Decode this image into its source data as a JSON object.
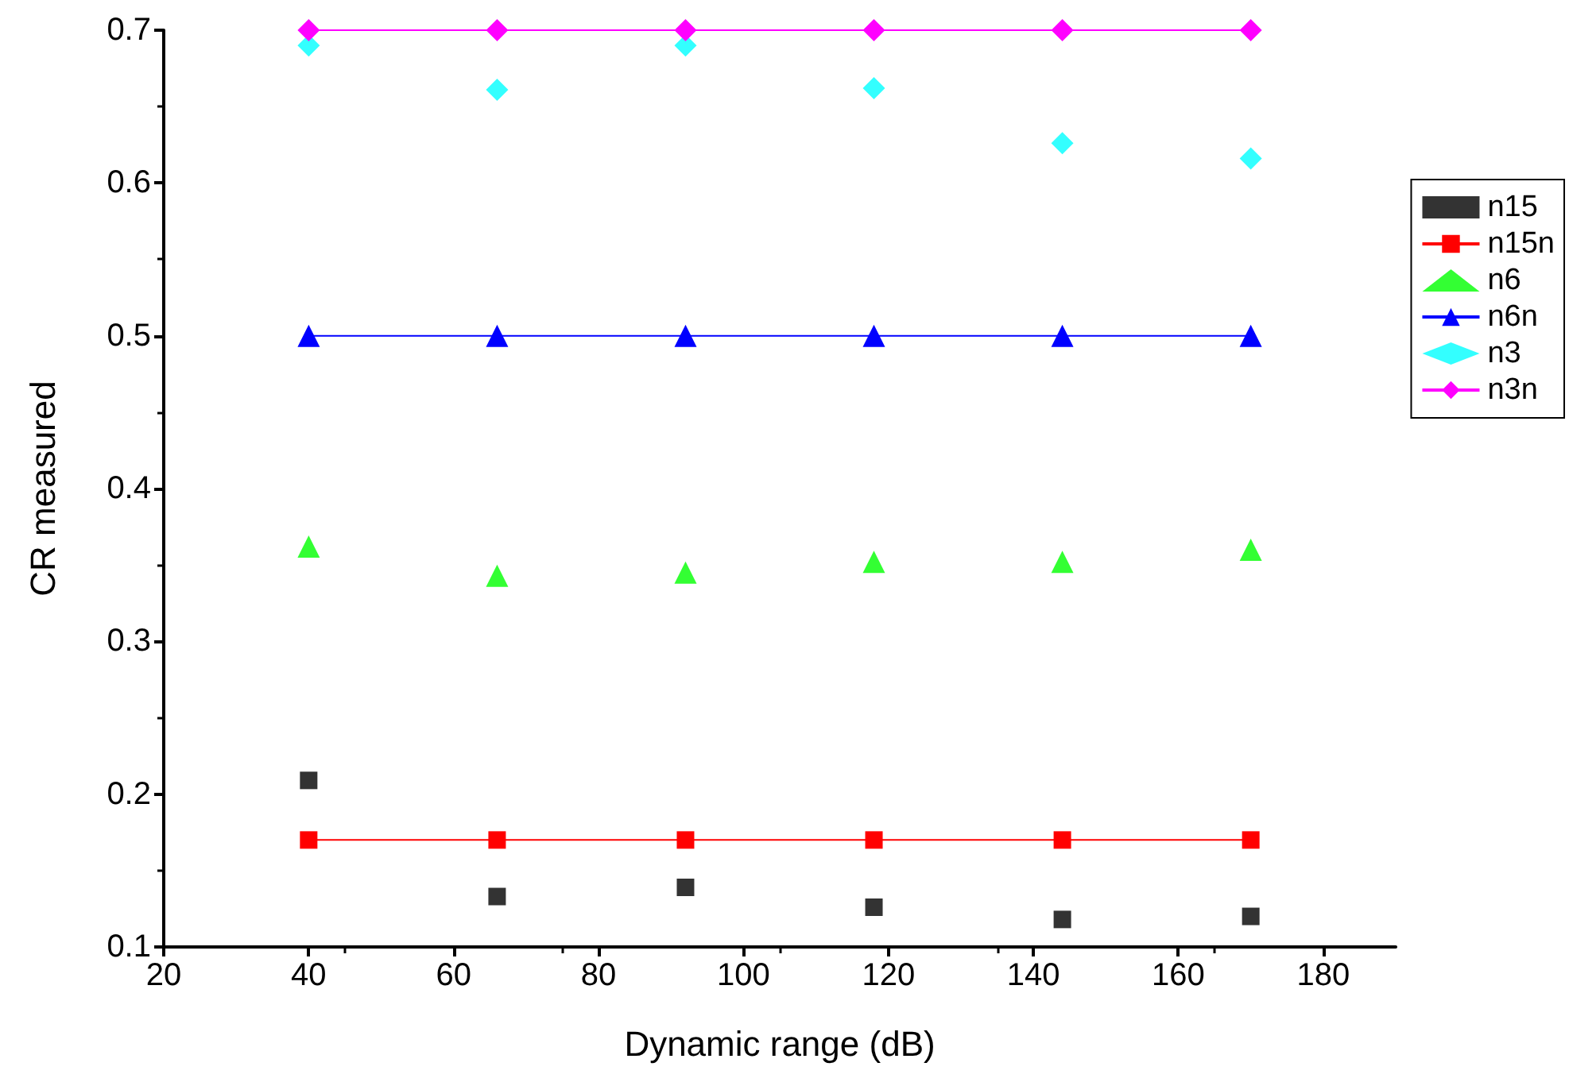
{
  "chart_data": {
    "type": "scatter",
    "xlabel": "Dynamic range (dB)",
    "ylabel": "CR measured",
    "x": [
      40,
      66,
      92,
      118,
      144,
      170
    ],
    "series": [
      {
        "name": "n15",
        "marker": "square",
        "color": "#000000",
        "values": [
          0.209,
          0.133,
          0.139,
          0.126,
          0.118,
          0.12
        ]
      },
      {
        "name": "n15n",
        "type": "line",
        "marker": "square",
        "line_style": "solid",
        "color": "#ff0000",
        "values": [
          0.17,
          0.17,
          0.17,
          0.17,
          0.17,
          0.17
        ]
      },
      {
        "name": "n6",
        "marker": "triangle",
        "color": "#00ff00",
        "values": [
          0.362,
          0.343,
          0.345,
          0.352,
          0.352,
          0.36
        ]
      },
      {
        "name": "n6n",
        "type": "line",
        "marker": "triangle",
        "line_style": "solid",
        "color": "#0000ff",
        "values": [
          0.5,
          0.5,
          0.5,
          0.5,
          0.5,
          0.5
        ]
      },
      {
        "name": "n3",
        "marker": "diamond",
        "color": "#00ffff",
        "values": [
          0.69,
          0.661,
          0.69,
          0.662,
          0.626,
          0.616
        ]
      },
      {
        "name": "n3n",
        "type": "line",
        "marker": "diamond",
        "line_style": "solid",
        "color": "#ff00ff",
        "values": [
          0.7,
          0.7,
          0.7,
          0.7,
          0.7,
          0.7
        ]
      }
    ],
    "xlim": [
      20,
      190
    ],
    "xticks": [
      20,
      40,
      60,
      80,
      100,
      120,
      140,
      160,
      180
    ],
    "ylim": [
      0.1,
      0.7
    ],
    "yticks": [
      0.1,
      0.2,
      0.3,
      0.4,
      0.5,
      0.6,
      0.7
    ],
    "grid": false,
    "legend": "right"
  }
}
